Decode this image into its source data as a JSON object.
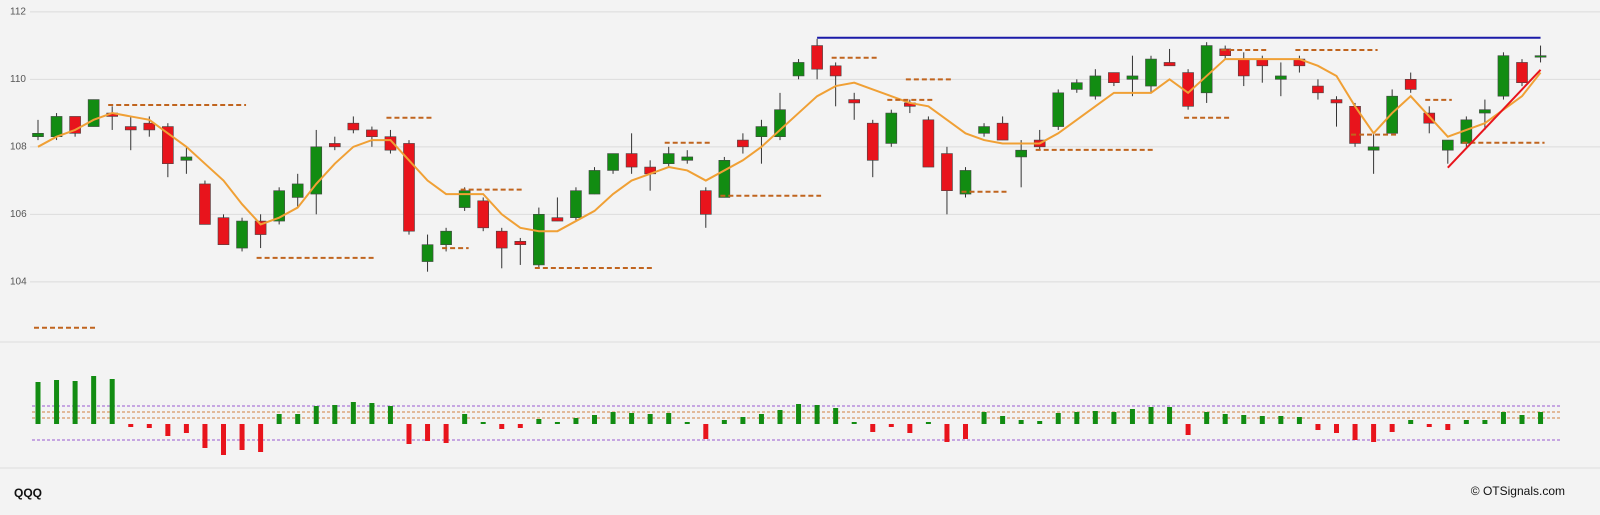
{
  "chart_data": {
    "type": "candlestick",
    "symbol": "QQQ",
    "credit": "© OTSignals.com",
    "ylim": [
      102.35,
      112.35
    ],
    "yticks": [
      104,
      106,
      108,
      110,
      112
    ],
    "grid": true,
    "colors": {
      "up": "#128c12",
      "down": "#e8141c"
    },
    "open": [
      108.3,
      108.3,
      108.9,
      108.6,
      109.0,
      108.6,
      108.7,
      108.6,
      107.6,
      106.9,
      105.9,
      105.0,
      105.8,
      105.8,
      106.5,
      106.6,
      108.1,
      108.7,
      108.5,
      108.3,
      108.1,
      104.6,
      105.1,
      106.2,
      106.4,
      105.5,
      105.2,
      104.5,
      105.9,
      105.9,
      106.6,
      107.3,
      107.8,
      107.4,
      107.5,
      107.6,
      106.7,
      106.5,
      108.2,
      108.3,
      108.3,
      110.1,
      111.0,
      110.4,
      109.4,
      108.7,
      108.1,
      109.3,
      108.8,
      107.8,
      106.6,
      108.4,
      108.7,
      107.7,
      108.2,
      108.6,
      109.7,
      109.5,
      110.2,
      110.0,
      109.8,
      110.5,
      110.2,
      109.6,
      110.9,
      110.6,
      110.6,
      110.0,
      110.6,
      109.8,
      109.4,
      109.2,
      107.9,
      108.4,
      110.0,
      109.0,
      107.9,
      108.1,
      109.0,
      109.5,
      110.5,
      110.7
    ],
    "high": [
      108.8,
      109.0,
      108.9,
      109.4,
      109.2,
      108.9,
      108.9,
      108.7,
      108.0,
      107.0,
      106.0,
      105.9,
      106.0,
      106.8,
      107.2,
      108.5,
      108.3,
      108.9,
      108.6,
      108.5,
      108.2,
      105.4,
      105.6,
      106.8,
      106.5,
      105.6,
      105.3,
      106.2,
      106.5,
      106.8,
      107.4,
      107.8,
      108.4,
      107.6,
      108.0,
      107.9,
      106.8,
      107.7,
      108.4,
      108.8,
      109.6,
      110.6,
      111.2,
      110.5,
      109.6,
      108.8,
      109.1,
      109.4,
      108.9,
      108.0,
      107.4,
      108.7,
      108.9,
      108.2,
      108.5,
      109.7,
      110.0,
      110.3,
      110.2,
      110.7,
      110.7,
      110.9,
      110.3,
      111.1,
      111.0,
      110.8,
      110.7,
      110.5,
      110.7,
      110.0,
      109.5,
      109.3,
      108.4,
      109.7,
      110.2,
      109.2,
      108.2,
      108.9,
      109.4,
      110.8,
      110.6,
      111.0
    ],
    "low": [
      108.2,
      108.2,
      108.3,
      108.6,
      108.5,
      107.9,
      108.3,
      107.1,
      107.2,
      105.7,
      105.1,
      104.9,
      105.0,
      105.7,
      106.2,
      106.0,
      107.9,
      108.4,
      108.0,
      107.8,
      105.4,
      104.3,
      104.9,
      106.1,
      105.5,
      104.4,
      104.5,
      104.4,
      105.8,
      105.8,
      106.6,
      107.2,
      107.2,
      106.7,
      107.4,
      107.5,
      105.6,
      106.5,
      107.8,
      107.5,
      108.2,
      110.0,
      110.0,
      109.2,
      108.8,
      107.1,
      108.0,
      109.0,
      107.4,
      106.0,
      106.5,
      108.3,
      108.2,
      106.8,
      107.9,
      108.5,
      109.6,
      109.4,
      109.8,
      109.5,
      109.6,
      110.4,
      109.1,
      109.3,
      110.6,
      109.8,
      109.9,
      109.5,
      110.2,
      109.4,
      108.6,
      108.0,
      107.2,
      108.4,
      109.6,
      108.4,
      107.5,
      108.0,
      108.5,
      109.4,
      109.8,
      110.5
    ],
    "close": [
      108.4,
      108.9,
      108.4,
      109.4,
      108.9,
      108.5,
      108.5,
      107.5,
      107.7,
      105.7,
      105.1,
      105.8,
      105.4,
      106.7,
      106.9,
      108.0,
      108.0,
      108.5,
      108.3,
      107.9,
      105.5,
      105.1,
      105.5,
      106.7,
      105.6,
      105.0,
      105.1,
      106.0,
      105.8,
      106.7,
      107.3,
      107.8,
      107.4,
      107.2,
      107.8,
      107.7,
      106.0,
      107.6,
      108.0,
      108.6,
      109.1,
      110.5,
      110.3,
      110.1,
      109.3,
      107.6,
      109.0,
      109.2,
      107.4,
      106.7,
      107.3,
      108.6,
      108.2,
      107.9,
      108.0,
      109.6,
      109.9,
      110.1,
      109.9,
      110.1,
      110.6,
      110.4,
      109.2,
      111.0,
      110.7,
      110.1,
      110.4,
      110.1,
      110.4,
      109.6,
      109.3,
      108.1,
      108.0,
      109.5,
      109.7,
      108.7,
      108.2,
      108.8,
      109.1,
      110.7,
      109.9,
      110.7
    ],
    "moving_average": {
      "color": "#f0a035",
      "values": [
        108.0,
        108.3,
        108.5,
        108.8,
        109.0,
        108.9,
        108.8,
        108.4,
        108.0,
        107.5,
        107.0,
        106.3,
        105.7,
        105.9,
        106.2,
        106.9,
        107.5,
        108.0,
        108.2,
        108.2,
        107.6,
        107.0,
        106.6,
        106.6,
        106.6,
        106.0,
        105.6,
        105.5,
        105.5,
        105.8,
        106.1,
        106.6,
        107.0,
        107.2,
        107.4,
        107.3,
        107.0,
        107.3,
        107.6,
        108.0,
        108.5,
        109.0,
        109.5,
        109.8,
        109.9,
        109.7,
        109.5,
        109.3,
        109.2,
        108.8,
        108.4,
        108.2,
        108.1,
        108.1,
        108.1,
        108.4,
        108.8,
        109.2,
        109.6,
        109.6,
        109.6,
        110.0,
        109.6,
        110.1,
        110.6,
        110.6,
        110.6,
        110.6,
        110.6,
        110.4,
        110.1,
        109.2,
        108.4,
        109.0,
        109.5,
        108.9,
        108.3,
        108.5,
        108.7,
        109.1,
        109.5,
        110.2
      ]
    },
    "levels": [
      {
        "start": 0,
        "end": 3,
        "value": 102.64
      },
      {
        "start": 4,
        "end": 11,
        "value": 109.24
      },
      {
        "start": 12,
        "end": 18,
        "value": 104.71
      },
      {
        "start": 19,
        "end": 21,
        "value": 108.86
      },
      {
        "start": 22,
        "end": 23,
        "value": 105.0
      },
      {
        "start": 23,
        "end": 26,
        "value": 106.73
      },
      {
        "start": 27,
        "end": 33,
        "value": 104.41
      },
      {
        "start": 34,
        "end": 36,
        "value": 108.12
      },
      {
        "start": 37,
        "end": 42,
        "value": 106.55
      },
      {
        "start": 43,
        "end": 45,
        "value": 110.64
      },
      {
        "start": 46,
        "end": 48,
        "value": 109.39
      },
      {
        "start": 47,
        "end": 49,
        "value": 110.0
      },
      {
        "start": 50,
        "end": 52,
        "value": 106.67
      },
      {
        "start": 54,
        "end": 60,
        "value": 107.91
      },
      {
        "start": 62,
        "end": 64,
        "value": 108.86
      },
      {
        "start": 64,
        "end": 66,
        "value": 110.87
      },
      {
        "start": 68,
        "end": 72,
        "value": 110.87
      },
      {
        "start": 71,
        "end": 73,
        "value": 108.36
      },
      {
        "start": 75,
        "end": 76,
        "value": 109.39
      },
      {
        "start": 77,
        "end": 81,
        "value": 108.12
      }
    ],
    "level_color": "#c0641e",
    "resistance": {
      "start": 42,
      "end": 81,
      "value": 111.23,
      "color": "#1a1aa8"
    },
    "trendline": {
      "start": 76,
      "end": 81,
      "from": 107.38,
      "to": 110.28,
      "color": "#e8141c"
    },
    "oscillator": {
      "ylim": [
        -5,
        6
      ],
      "values": [
        4.2,
        4.4,
        4.3,
        4.8,
        4.5,
        -0.3,
        -0.4,
        -1.2,
        -0.9,
        -2.4,
        -3.1,
        -2.6,
        -2.8,
        1.0,
        1.0,
        1.8,
        1.9,
        2.2,
        2.1,
        1.8,
        -2.0,
        -1.7,
        -1.9,
        1.0,
        0.2,
        -0.5,
        -0.4,
        0.5,
        0.2,
        0.6,
        0.9,
        1.2,
        1.1,
        1.0,
        1.1,
        0.2,
        -1.5,
        0.4,
        0.7,
        1.0,
        1.4,
        2.0,
        1.9,
        1.6,
        0.2,
        -0.8,
        -0.3,
        -0.9,
        0.2,
        -1.8,
        -1.5,
        1.2,
        0.8,
        0.4,
        0.3,
        1.1,
        1.2,
        1.3,
        1.2,
        1.5,
        1.7,
        1.7,
        -1.1,
        1.2,
        1.0,
        0.9,
        0.8,
        0.8,
        0.7,
        -0.6,
        -0.9,
        -1.6,
        -1.8,
        -0.8,
        0.4,
        -0.3,
        -0.6,
        0.4,
        0.4,
        1.2,
        0.9,
        1.2
      ],
      "levels": [
        {
          "value": 1.8,
          "color": "#9a5ad0"
        },
        {
          "value": 1.2,
          "color": "#d08040"
        },
        {
          "value": 0.6,
          "color": "#d08040"
        },
        {
          "value": -1.6,
          "color": "#9a5ad0"
        }
      ]
    }
  }
}
